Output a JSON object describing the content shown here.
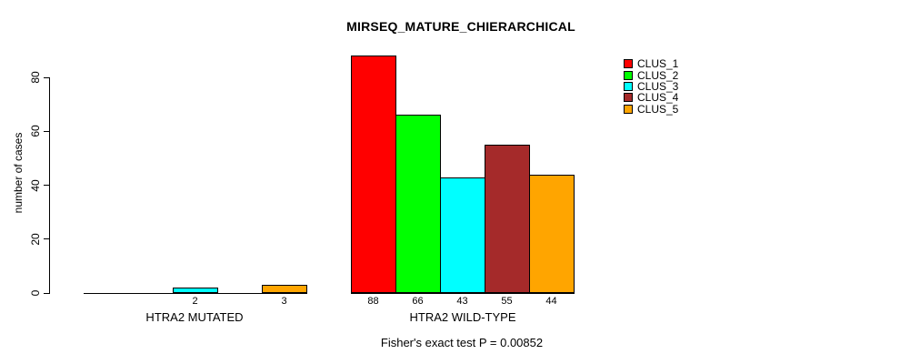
{
  "chart_data": {
    "type": "bar",
    "title": "MIRSEQ_MATURE_CHIERARCHICAL",
    "ylabel": "number of cases",
    "xlabel": "",
    "categories": [
      "HTRA2 MUTATED",
      "HTRA2 WILD-TYPE"
    ],
    "series": [
      {
        "name": "CLUS_1",
        "color": "#ff0000",
        "values": [
          0,
          88
        ]
      },
      {
        "name": "CLUS_2",
        "color": "#00ff00",
        "values": [
          0,
          66
        ]
      },
      {
        "name": "CLUS_3",
        "color": "#00ffff",
        "values": [
          2,
          43
        ]
      },
      {
        "name": "CLUS_4",
        "color": "#a52a2a",
        "values": [
          0,
          55
        ]
      },
      {
        "name": "CLUS_5",
        "color": "#ffa500",
        "values": [
          3,
          44
        ]
      }
    ],
    "yticks": [
      0,
      20,
      40,
      60,
      80
    ],
    "ylim": [
      0,
      88
    ],
    "grid": false,
    "legend_position": "top-right",
    "bar_value_labels_shown_when_nonzero": true,
    "annotation": "Fisher's exact test P = 0.00852",
    "axis_color": "#000000",
    "bar_border_color": "#000000",
    "background_color": "#ffffff"
  }
}
